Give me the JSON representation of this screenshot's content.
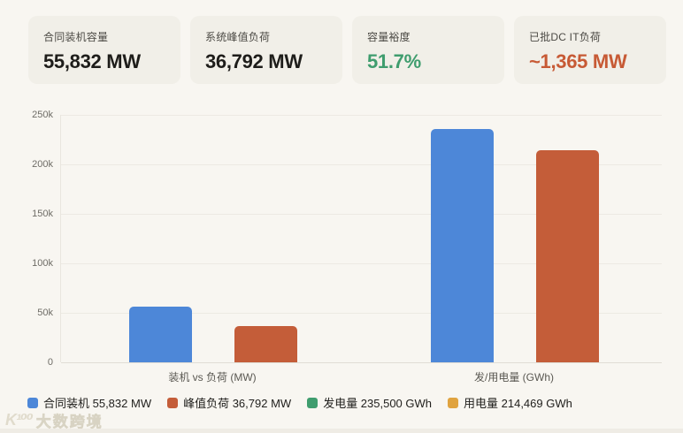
{
  "page": {
    "background": "#f8f6f1"
  },
  "cards": [
    {
      "label": "合同装机容量",
      "value": "55,832 MW",
      "value_color": "#1e1d1a"
    },
    {
      "label": "系统峰值负荷",
      "value": "36,792 MW",
      "value_color": "#1e1d1a"
    },
    {
      "label": "容量裕度",
      "value": "51.7%",
      "value_color": "#3f9d6e"
    },
    {
      "label": "已批DC IT负荷",
      "value": "~1,365 MW",
      "value_color": "#c75a35"
    }
  ],
  "chart_data": {
    "type": "bar",
    "categories": [
      "装机 vs 负荷 (MW)",
      "发/用电量 (GWh)"
    ],
    "groups": [
      {
        "category": "装机 vs 负荷 (MW)",
        "bars": [
          {
            "name": "合同装机",
            "value": 55832,
            "unit": "MW",
            "color": "#4d87d8"
          },
          {
            "name": "峰值负荷",
            "value": 36792,
            "unit": "MW",
            "color": "#c45d39"
          }
        ]
      },
      {
        "category": "发/用电量 (GWh)",
        "bars": [
          {
            "name": "发电量",
            "value": 235500,
            "unit": "GWh",
            "color": "#4d87d8"
          },
          {
            "name": "用电量",
            "value": 214469,
            "unit": "GWh",
            "color": "#c45d39"
          }
        ]
      }
    ],
    "ylim": [
      0,
      250000
    ],
    "yticks": [
      {
        "label": "0",
        "value": 0
      },
      {
        "label": "50k",
        "value": 50000
      },
      {
        "label": "100k",
        "value": 100000
      },
      {
        "label": "150k",
        "value": 150000
      },
      {
        "label": "200k",
        "value": 200000
      },
      {
        "label": "250k",
        "value": 250000
      }
    ],
    "grid": true,
    "legend_position": "bottom",
    "legend": [
      {
        "label": "合同装机 55,832 MW",
        "color": "#4d87d8"
      },
      {
        "label": "峰值负荷 36,792 MW",
        "color": "#c45d39"
      },
      {
        "label": "发电量 235,500 GWh",
        "color": "#3f9d6e"
      },
      {
        "label": "用电量 214,469 GWh",
        "color": "#e0a33f"
      }
    ]
  },
  "watermark": {
    "logo": "K¹⁰⁰",
    "text": "大数跨境"
  }
}
